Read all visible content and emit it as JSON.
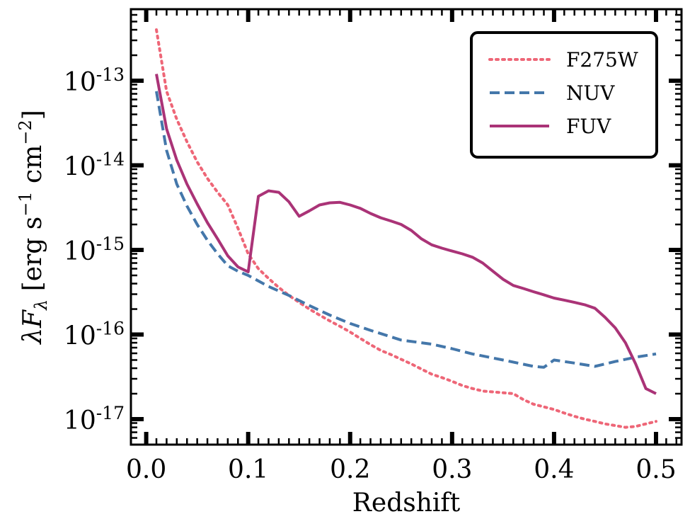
{
  "chart_data": {
    "type": "line",
    "xlabel": "Redshift",
    "ylabel": "λF_λ [erg s^−1 cm^−2]",
    "ylabel_parts": {
      "main": "λF",
      "sub": "λ",
      "units": "[erg s",
      "exp1": "−1",
      "mid": " cm",
      "exp2": "−2",
      "close": "]"
    },
    "xlim": [
      -0.015,
      0.525
    ],
    "ylim": [
      5e-18,
      7e-13
    ],
    "yscale": "log",
    "x_ticks": [
      0.0,
      0.1,
      0.2,
      0.3,
      0.4,
      0.5
    ],
    "x_tick_labels": [
      "0.0",
      "0.1",
      "0.2",
      "0.3",
      "0.4",
      "0.5"
    ],
    "y_ticks": [
      {
        "value": 1e-13,
        "base": "10",
        "exp": "-13"
      },
      {
        "value": 1e-14,
        "base": "10",
        "exp": "-14"
      },
      {
        "value": 1e-15,
        "base": "10",
        "exp": "-15"
      },
      {
        "value": 1e-16,
        "base": "10",
        "exp": "-16"
      },
      {
        "value": 1e-17,
        "base": "10",
        "exp": "-17"
      }
    ],
    "grid": false,
    "legend_position": "top-right",
    "series": [
      {
        "name": "F275W",
        "color": "#EE6677",
        "style": "dotted",
        "x": [
          0.01,
          0.02,
          0.03,
          0.04,
          0.05,
          0.06,
          0.07,
          0.08,
          0.09,
          0.1,
          0.11,
          0.12,
          0.13,
          0.14,
          0.15,
          0.16,
          0.17,
          0.18,
          0.19,
          0.2,
          0.21,
          0.22,
          0.23,
          0.24,
          0.25,
          0.26,
          0.27,
          0.28,
          0.29,
          0.3,
          0.31,
          0.32,
          0.33,
          0.34,
          0.35,
          0.36,
          0.37,
          0.38,
          0.39,
          0.4,
          0.41,
          0.42,
          0.43,
          0.44,
          0.45,
          0.46,
          0.47,
          0.48,
          0.49,
          0.5
        ],
        "y": [
          4e-13,
          7.5e-14,
          3.5e-14,
          1.9e-14,
          1.1e-14,
          7e-15,
          4.8e-15,
          3.4e-15,
          1.8e-15,
          9e-16,
          6e-16,
          4.6e-16,
          3.6e-16,
          2.9e-16,
          2.4e-16,
          2e-16,
          1.7e-16,
          1.45e-16,
          1.25e-16,
          1.07e-16,
          9e-17,
          7.6e-17,
          6.5e-17,
          5.8e-17,
          5.1e-17,
          4.5e-17,
          3.9e-17,
          3.4e-17,
          3.1e-17,
          2.8e-17,
          2.5e-17,
          2.3e-17,
          2.15e-17,
          2.1e-17,
          2.05e-17,
          2e-17,
          1.7e-17,
          1.5e-17,
          1.4e-17,
          1.3e-17,
          1.18e-17,
          1.08e-17,
          1e-17,
          9.4e-18,
          8.8e-18,
          8.4e-18,
          8e-18,
          8.2e-18,
          8.8e-18,
          9.4e-18
        ]
      },
      {
        "name": "NUV",
        "color": "#4477AA",
        "style": "dashed",
        "x": [
          0.01,
          0.02,
          0.03,
          0.04,
          0.05,
          0.06,
          0.07,
          0.08,
          0.09,
          0.1,
          0.12,
          0.14,
          0.16,
          0.18,
          0.2,
          0.22,
          0.25,
          0.28,
          0.3,
          0.32,
          0.35,
          0.38,
          0.39,
          0.4,
          0.42,
          0.44,
          0.46,
          0.48,
          0.5
        ],
        "y": [
          7.5e-14,
          1.5e-14,
          6e-15,
          3.3e-15,
          2e-15,
          1.3e-15,
          9e-16,
          6.5e-16,
          5.6e-16,
          5e-16,
          3.7e-16,
          2.9e-16,
          2.2e-16,
          1.7e-16,
          1.35e-16,
          1.12e-16,
          8.6e-17,
          7.7e-17,
          6.8e-17,
          5.9e-17,
          5e-17,
          4.2e-17,
          4.1e-17,
          5e-17,
          4.6e-17,
          4.2e-17,
          4.8e-17,
          5.4e-17,
          5.9e-17
        ]
      },
      {
        "name": "FUV",
        "color": "#AA3377",
        "style": "solid",
        "x": [
          0.01,
          0.02,
          0.03,
          0.04,
          0.05,
          0.06,
          0.07,
          0.08,
          0.09,
          0.1,
          0.11,
          0.12,
          0.13,
          0.14,
          0.15,
          0.16,
          0.17,
          0.18,
          0.19,
          0.2,
          0.21,
          0.22,
          0.23,
          0.24,
          0.25,
          0.26,
          0.27,
          0.28,
          0.29,
          0.3,
          0.31,
          0.32,
          0.33,
          0.34,
          0.35,
          0.36,
          0.37,
          0.38,
          0.39,
          0.4,
          0.41,
          0.42,
          0.43,
          0.44,
          0.45,
          0.46,
          0.47,
          0.48,
          0.49,
          0.5
        ],
        "y": [
          1.2e-13,
          2.7e-14,
          1.15e-14,
          6e-15,
          3.5e-15,
          2.1e-15,
          1.35e-15,
          8.5e-16,
          6.3e-16,
          5.5e-16,
          4.3e-15,
          5e-15,
          4.8e-15,
          3.7e-15,
          2.5e-15,
          2.9e-15,
          3.4e-15,
          3.6e-15,
          3.65e-15,
          3.4e-15,
          3.1e-15,
          2.7e-15,
          2.4e-15,
          2.2e-15,
          2e-15,
          1.7e-15,
          1.35e-15,
          1.15e-15,
          1.05e-15,
          9.7e-16,
          9e-16,
          8.2e-16,
          7e-16,
          5.6e-16,
          4.5e-16,
          3.8e-16,
          3.5e-16,
          3.2e-16,
          2.95e-16,
          2.7e-16,
          2.55e-16,
          2.4e-16,
          2.25e-16,
          2.05e-16,
          1.6e-16,
          1.2e-16,
          8e-17,
          4.5e-17,
          2.3e-17,
          2e-17
        ]
      }
    ]
  }
}
